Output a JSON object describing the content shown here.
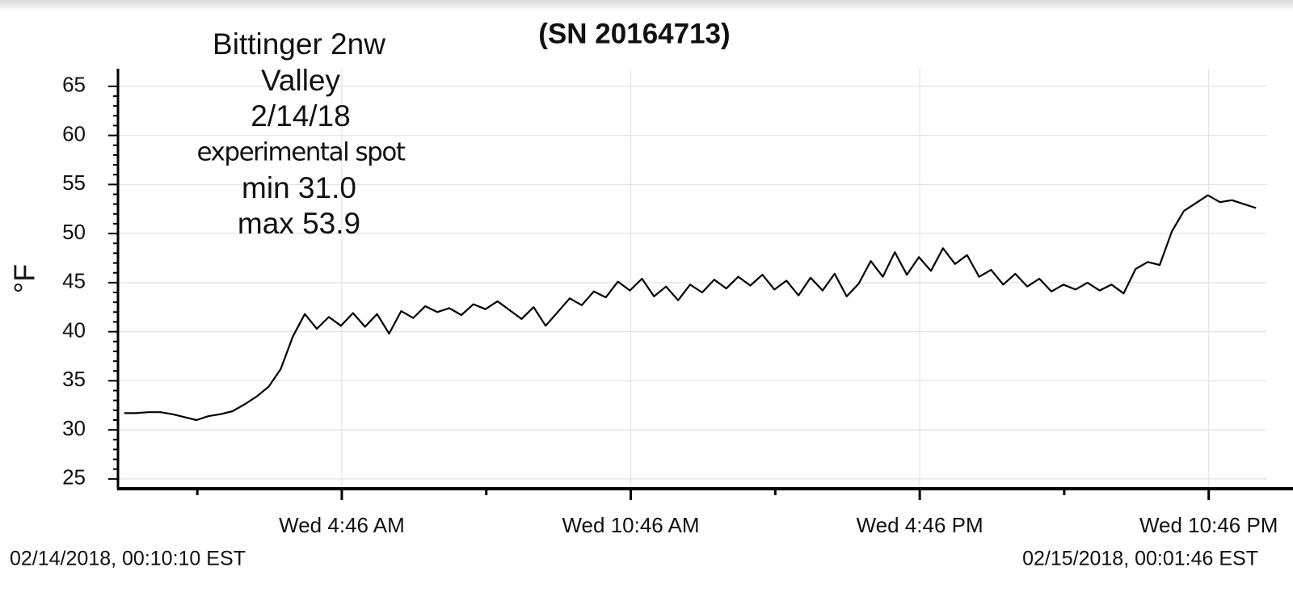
{
  "chart_data": {
    "type": "line",
    "title": "(SN 20164713)",
    "y_label": "°F",
    "annotations": [
      "Bittinger 2nw",
      "Valley",
      "2/14/18",
      "experimental spot",
      "min 31.0",
      "max 53.9"
    ],
    "start_label": "02/14/2018, 00:10:10 EST",
    "end_label": "02/15/2018, 00:01:46 EST",
    "color": "#000000",
    "grid": true,
    "xlim": [
      0.12,
      23.98
    ],
    "xticks": [
      {
        "value": 4.767,
        "label": "Wed 4:46 AM"
      },
      {
        "value": 10.767,
        "label": "Wed 10:46 AM"
      },
      {
        "value": 16.767,
        "label": "Wed 4:46 PM"
      },
      {
        "value": 22.767,
        "label": "Wed 10:46 PM"
      }
    ],
    "ylim": [
      24,
      66.8
    ],
    "yticks": [
      25,
      30,
      35,
      40,
      45,
      50,
      55,
      60,
      65
    ],
    "x": [
      0.25,
      0.5,
      0.75,
      1.0,
      1.25,
      1.5,
      1.75,
      2.0,
      2.25,
      2.5,
      2.75,
      3.0,
      3.25,
      3.5,
      3.75,
      4.0,
      4.25,
      4.5,
      4.75,
      5.0,
      5.25,
      5.5,
      5.75,
      6.0,
      6.25,
      6.5,
      6.75,
      7.0,
      7.25,
      7.5,
      7.75,
      8.0,
      8.25,
      8.5,
      8.75,
      9.0,
      9.25,
      9.5,
      9.75,
      10.0,
      10.25,
      10.5,
      10.75,
      11.0,
      11.25,
      11.5,
      11.75,
      12.0,
      12.25,
      12.5,
      12.75,
      13.0,
      13.25,
      13.5,
      13.75,
      14.0,
      14.25,
      14.5,
      14.75,
      15.0,
      15.25,
      15.5,
      15.75,
      16.0,
      16.25,
      16.5,
      16.75,
      17.0,
      17.25,
      17.5,
      17.75,
      18.0,
      18.25,
      18.5,
      18.75,
      19.0,
      19.25,
      19.5,
      19.75,
      20.0,
      20.25,
      20.5,
      20.75,
      21.0,
      21.25,
      21.5,
      21.75,
      22.0,
      22.25,
      22.5,
      22.75,
      23.0,
      23.25,
      23.5,
      23.75
    ],
    "values": [
      31.7,
      31.7,
      31.8,
      31.8,
      31.6,
      31.3,
      31.0,
      31.4,
      31.6,
      31.9,
      32.6,
      33.4,
      34.4,
      36.2,
      39.5,
      41.8,
      40.3,
      41.5,
      40.6,
      41.9,
      40.5,
      41.8,
      39.8,
      42.1,
      41.4,
      42.6,
      42.0,
      42.4,
      41.7,
      42.8,
      42.3,
      43.1,
      42.2,
      41.3,
      42.5,
      40.6,
      42.0,
      43.4,
      42.7,
      44.1,
      43.5,
      45.1,
      44.2,
      45.4,
      43.6,
      44.6,
      43.2,
      44.8,
      44.0,
      45.3,
      44.4,
      45.6,
      44.7,
      45.8,
      44.3,
      45.2,
      43.7,
      45.5,
      44.2,
      45.9,
      43.6,
      44.9,
      47.2,
      45.6,
      48.1,
      45.8,
      47.6,
      46.2,
      48.5,
      46.9,
      47.8,
      45.6,
      46.3,
      44.8,
      45.9,
      44.6,
      45.4,
      44.1,
      44.8,
      44.3,
      45.0,
      44.2,
      44.8,
      43.9,
      46.4,
      47.1,
      46.8,
      50.2,
      52.3,
      53.1,
      53.9,
      53.2,
      53.4,
      53.0,
      52.6
    ]
  }
}
